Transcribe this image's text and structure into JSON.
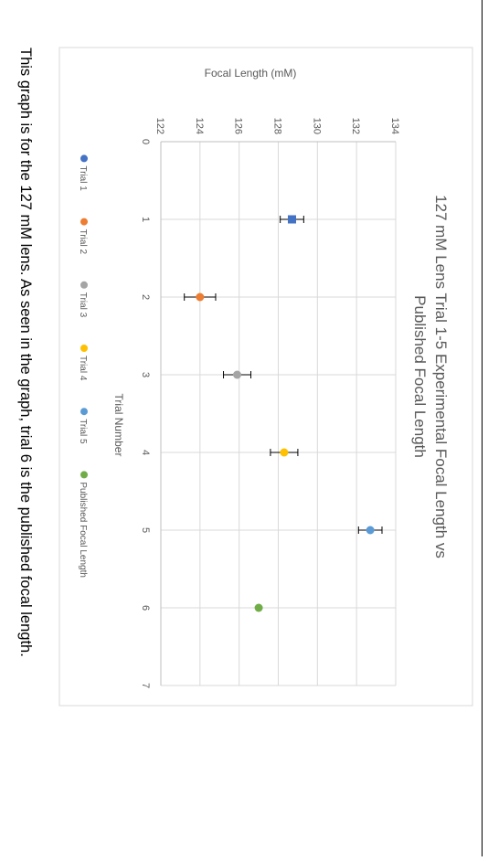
{
  "caption": "This graph is for the 127 mM lens. As seen in the graph, trial 6 is the published focal length.",
  "chart_data": {
    "type": "scatter",
    "title": "127 mM Lens Trial 1-5 Experimental Focal Length vs Published Focal Length",
    "title_lines": [
      "127 mM Lens Trial 1-5 Experimental Focal Length vs",
      "Published Focal Length"
    ],
    "xlabel": "Trial Number",
    "ylabel": "Focal Length (mM)",
    "xlim": [
      0,
      7
    ],
    "ylim": [
      122,
      134
    ],
    "xticks": [
      0,
      1,
      2,
      3,
      4,
      5,
      6,
      7
    ],
    "yticks": [
      122,
      124,
      126,
      128,
      130,
      132,
      134
    ],
    "grid": true,
    "legend_position": "bottom",
    "series": [
      {
        "name": "Trial 1",
        "x": 1,
        "y": 128.7,
        "err": 0.6,
        "color": "#4472C4",
        "marker": "square"
      },
      {
        "name": "Trial 2",
        "x": 2,
        "y": 124.0,
        "err": 0.8,
        "color": "#ED7D31",
        "marker": "circle"
      },
      {
        "name": "Trial 3",
        "x": 3,
        "y": 125.9,
        "err": 0.7,
        "color": "#A5A5A5",
        "marker": "circle"
      },
      {
        "name": "Trial 4",
        "x": 4,
        "y": 128.3,
        "err": 0.7,
        "color": "#FFC000",
        "marker": "circle"
      },
      {
        "name": "Trial 5",
        "x": 5,
        "y": 132.7,
        "err": 0.6,
        "color": "#5B9BD5",
        "marker": "circle"
      },
      {
        "name": "Published Focal Length",
        "x": 6,
        "y": 127.0,
        "err": 0,
        "color": "#70AD47",
        "marker": "circle"
      }
    ]
  }
}
